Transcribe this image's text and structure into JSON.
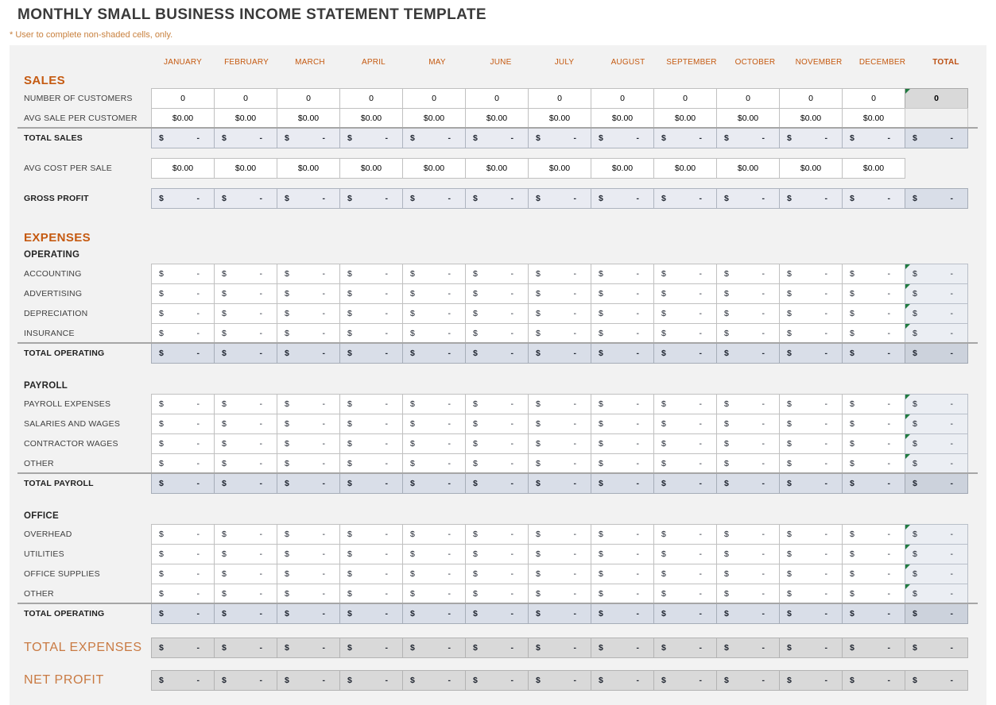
{
  "page": {
    "title": "MONTHLY SMALL BUSINESS INCOME STATEMENT TEMPLATE",
    "footnote": "* User to complete non-shaded cells, only."
  },
  "columns": {
    "months": [
      "JANUARY",
      "FEBRUARY",
      "MARCH",
      "APRIL",
      "MAY",
      "JUNE",
      "JULY",
      "AUGUST",
      "SEPTEMBER",
      "OCTOBER",
      "NOVEMBER",
      "DECEMBER"
    ],
    "total": "TOTAL"
  },
  "cells": {
    "currency_symbol": "$",
    "empty_amount": "-",
    "zero": "0",
    "zero_currency": "$0.00"
  },
  "colors": {
    "accent_orange": "#c55a11",
    "summary_orange": "#c97a43",
    "subtotal_blue_light": "#e9ebf2",
    "subtotal_blue": "#d9dee8",
    "shaded_gray": "#d9d9d9",
    "formula_triangle_green": "#1f7a3f"
  },
  "sales": {
    "heading": "SALES",
    "rows": [
      {
        "id": "number-of-customers",
        "label": "NUMBER OF CUSTOMERS",
        "kind": "number",
        "values": [
          "0",
          "0",
          "0",
          "0",
          "0",
          "0",
          "0",
          "0",
          "0",
          "0",
          "0",
          "0"
        ],
        "total": "0"
      },
      {
        "id": "avg-sale-per-customer",
        "label": "AVG SALE PER CUSTOMER",
        "kind": "currency",
        "values": [
          "$0.00",
          "$0.00",
          "$0.00",
          "$0.00",
          "$0.00",
          "$0.00",
          "$0.00",
          "$0.00",
          "$0.00",
          "$0.00",
          "$0.00",
          "$0.00"
        ],
        "total_cell": "blank"
      },
      {
        "id": "total-sales",
        "label": "TOTAL SALES",
        "kind": "subtotal-light",
        "rule_above": true
      }
    ]
  },
  "cost": {
    "rows": [
      {
        "id": "avg-cost-per-sale",
        "label": "AVG COST PER SALE",
        "kind": "currency",
        "values": [
          "$0.00",
          "$0.00",
          "$0.00",
          "$0.00",
          "$0.00",
          "$0.00",
          "$0.00",
          "$0.00",
          "$0.00",
          "$0.00",
          "$0.00",
          "$0.00"
        ],
        "total_cell": "none"
      }
    ]
  },
  "profit": {
    "rows": [
      {
        "id": "gross-profit",
        "label": "GROSS PROFIT",
        "kind": "subtotal-light"
      }
    ]
  },
  "expenses": {
    "heading": "EXPENSES",
    "groups": [
      {
        "subheading": "OPERATING",
        "rows": [
          {
            "id": "accounting",
            "label": "ACCOUNTING"
          },
          {
            "id": "advertising",
            "label": "ADVERTISING"
          },
          {
            "id": "depreciation",
            "label": "DEPRECIATION"
          },
          {
            "id": "insurance",
            "label": "INSURANCE"
          }
        ],
        "total_row": {
          "id": "total-operating",
          "label": "TOTAL OPERATING"
        }
      },
      {
        "subheading": "PAYROLL",
        "rows": [
          {
            "id": "payroll-expenses",
            "label": "PAYROLL EXPENSES"
          },
          {
            "id": "salaries-and-wages",
            "label": "SALARIES AND WAGES"
          },
          {
            "id": "contractor-wages",
            "label": "CONTRACTOR WAGES"
          },
          {
            "id": "other-payroll",
            "label": "OTHER"
          }
        ],
        "total_row": {
          "id": "total-payroll",
          "label": "TOTAL PAYROLL"
        }
      },
      {
        "subheading": "OFFICE",
        "rows": [
          {
            "id": "overhead",
            "label": "OVERHEAD"
          },
          {
            "id": "utilities",
            "label": "UTILITIES"
          },
          {
            "id": "office-supplies",
            "label": "OFFICE SUPPLIES"
          },
          {
            "id": "other-office",
            "label": "OTHER"
          }
        ],
        "total_row": {
          "id": "total-operating-office",
          "label": "TOTAL OPERATING"
        }
      }
    ]
  },
  "summary": [
    {
      "id": "total-expenses",
      "label": "TOTAL EXPENSES"
    },
    {
      "id": "net-profit",
      "label": "NET PROFIT"
    }
  ]
}
